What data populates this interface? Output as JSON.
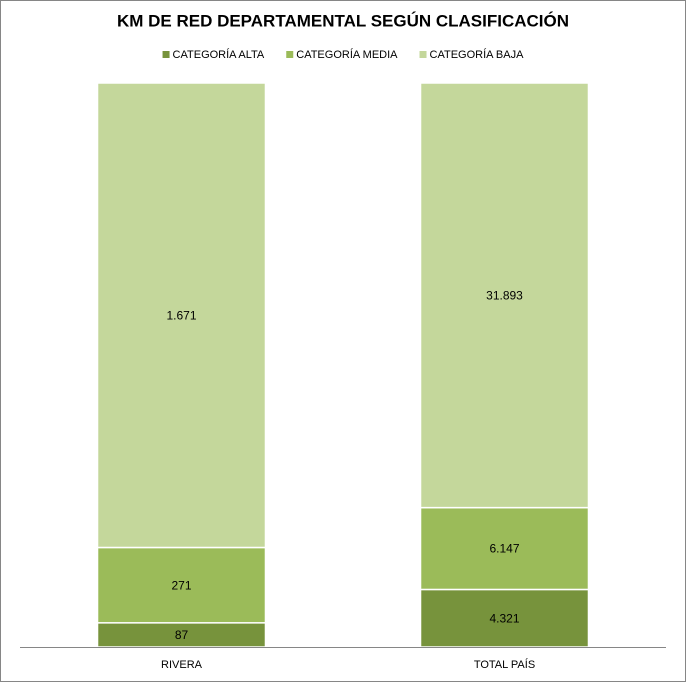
{
  "chart_data": {
    "type": "bar",
    "stacked": "percent",
    "title": "KM DE RED DEPARTAMENTAL SEGÚN CLASIFICACIÓN",
    "categories": [
      "RIVERA",
      "TOTAL PAÍS"
    ],
    "series": [
      {
        "name": "CATEGORÍA ALTA",
        "color": "#77933c",
        "values": [
          87,
          4321
        ],
        "value_labels": [
          "87",
          "4.321"
        ]
      },
      {
        "name": "CATEGORÍA MEDIA",
        "color": "#9bbb59",
        "values": [
          271,
          6147
        ],
        "value_labels": [
          "271",
          "6.147"
        ]
      },
      {
        "name": "CATEGORÍA BAJA",
        "color": "#c4d79b",
        "values": [
          1671,
          31893
        ],
        "value_labels": [
          "1.671",
          "31.893"
        ]
      }
    ],
    "legend": "top"
  }
}
